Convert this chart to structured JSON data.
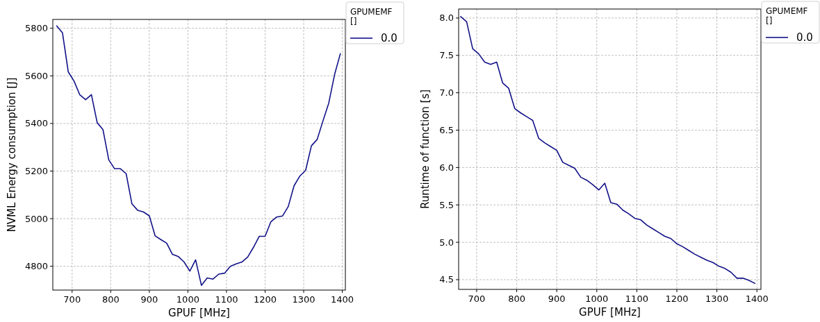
{
  "chart_data": [
    {
      "type": "line",
      "xlabel": "GPUF [MHz]",
      "ylabel": "NVML Energy consumption [J]",
      "legend_title": "GPUMEMF\n[]",
      "legend": "top right",
      "grid": true,
      "line_style": "solid",
      "xlim": [
        650,
        1408
      ],
      "xticks": [
        700,
        800,
        900,
        1000,
        1100,
        1200,
        1300,
        1400
      ],
      "ylim": [
        4700,
        5837
      ],
      "yticks": [
        4800,
        5000,
        5200,
        5400,
        5600,
        5800
      ],
      "x": [
        660,
        675,
        690,
        705,
        720,
        735,
        750,
        765,
        780,
        795,
        810,
        825,
        840,
        855,
        870,
        885,
        900,
        915,
        930,
        945,
        960,
        975,
        990,
        1005,
        1020,
        1035,
        1050,
        1065,
        1080,
        1095,
        1110,
        1125,
        1140,
        1155,
        1170,
        1185,
        1200,
        1215,
        1230,
        1245,
        1260,
        1275,
        1290,
        1305,
        1320,
        1335,
        1350,
        1365,
        1380,
        1395
      ],
      "series": [
        {
          "name": "0.0",
          "color": "#111188",
          "values": [
            5810,
            5781,
            5617,
            5578,
            5520,
            5500,
            5521,
            5403,
            5374,
            5247,
            5210,
            5210,
            5189,
            5062,
            5035,
            5028,
            5012,
            4928,
            4912,
            4897,
            4850,
            4841,
            4818,
            4780,
            4827,
            4720,
            4751,
            4746,
            4767,
            4771,
            4800,
            4810,
            4818,
            4839,
            4880,
            4926,
            4926,
            4987,
            5007,
            5011,
            5051,
            5138,
            5179,
            5203,
            5306,
            5333,
            5411,
            5486,
            5605,
            5693
          ]
        }
      ]
    },
    {
      "type": "line",
      "xlabel": "GPUF [MHz]",
      "ylabel": "Runtime of function [s]",
      "legend_title": "GPUMEMF\n[]",
      "legend": "top right",
      "grid": true,
      "line_style": "solid",
      "xlim": [
        655,
        1410
      ],
      "xticks": [
        700,
        800,
        900,
        1000,
        1100,
        1200,
        1300,
        1400
      ],
      "ylim": [
        4.37,
        8.12
      ],
      "yticks": [
        {
          "value": 4.5,
          "label": "4.5"
        },
        {
          "value": 5,
          "label": "5.0"
        },
        {
          "value": 5.5,
          "label": "5.5"
        },
        {
          "value": 6,
          "label": "6.0"
        },
        {
          "value": 6.5,
          "label": "6.5"
        },
        {
          "value": 7,
          "label": "7.0"
        },
        {
          "value": 7.5,
          "label": "7.5"
        },
        {
          "value": 8,
          "label": "8.0"
        }
      ],
      "x": [
        660,
        675,
        690,
        705,
        720,
        735,
        750,
        765,
        780,
        795,
        810,
        825,
        840,
        855,
        870,
        885,
        900,
        915,
        930,
        945,
        960,
        975,
        990,
        1005,
        1020,
        1035,
        1050,
        1065,
        1080,
        1095,
        1110,
        1125,
        1140,
        1155,
        1170,
        1185,
        1200,
        1215,
        1230,
        1245,
        1260,
        1275,
        1290,
        1305,
        1320,
        1335,
        1350,
        1365,
        1380,
        1395
      ],
      "series": [
        {
          "name": "0.0",
          "color": "#111188",
          "values": [
            8.02,
            7.95,
            7.59,
            7.52,
            7.41,
            7.38,
            7.41,
            7.13,
            7.06,
            6.79,
            6.73,
            6.68,
            6.63,
            6.39,
            6.33,
            6.28,
            6.23,
            6.07,
            6.03,
            5.99,
            5.87,
            5.83,
            5.77,
            5.7,
            5.79,
            5.53,
            5.51,
            5.43,
            5.38,
            5.32,
            5.3,
            5.23,
            5.18,
            5.13,
            5.08,
            5.05,
            4.98,
            4.94,
            4.89,
            4.84,
            4.8,
            4.76,
            4.73,
            4.68,
            4.65,
            4.6,
            4.52,
            4.52,
            4.49,
            4.45
          ]
        }
      ]
    }
  ]
}
